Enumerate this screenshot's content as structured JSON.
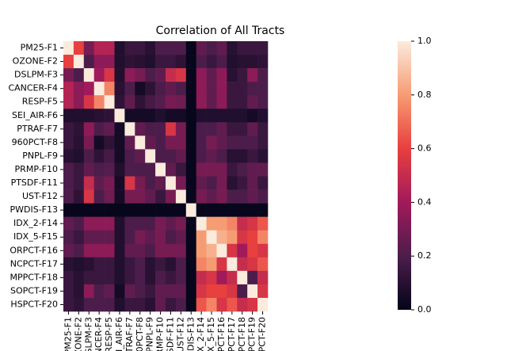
{
  "chart_data": {
    "type": "heatmap",
    "title": "Correlation of All Tracts",
    "categories": [
      "PM25-F1",
      "OZONE-F2",
      "DSLPM-F3",
      "CANCER-F4",
      "RESP-F5",
      "SEI_AIR-F6",
      "PTRAF-F7",
      "960PCT-F8",
      "PNPL-F9",
      "PRMP-F10",
      "PTSDF-F11",
      "UST-F12",
      "PWDIS-F13",
      "IDX_2-F14",
      "IDX_5-F15",
      "ORPCT-F16",
      "NCPCT-F17",
      "MPPCT-F18",
      "SOPCT-F19",
      "HSPCT-F20"
    ],
    "z": [
      [
        1,
        0.6,
        0.3,
        0.45,
        0.45,
        0.08,
        0.15,
        0.15,
        0.1,
        0.2,
        0.2,
        0.2,
        0.01,
        0.25,
        0.2,
        0.25,
        0.1,
        0.15,
        0.15,
        0.15
      ],
      [
        0.6,
        1,
        0.2,
        0.35,
        0.35,
        0.08,
        0.12,
        0.1,
        0.08,
        0.15,
        0.15,
        0.12,
        0.01,
        0.2,
        0.15,
        0.2,
        0.08,
        0.1,
        0.1,
        0.12
      ],
      [
        0.3,
        0.2,
        1,
        0.4,
        0.55,
        0.08,
        0.35,
        0.3,
        0.2,
        0.25,
        0.5,
        0.55,
        0.01,
        0.35,
        0.25,
        0.35,
        0.1,
        0.15,
        0.35,
        0.2
      ],
      [
        0.45,
        0.35,
        0.4,
        1,
        0.75,
        0.1,
        0.2,
        0.05,
        0.12,
        0.2,
        0.25,
        0.2,
        0.01,
        0.35,
        0.25,
        0.35,
        0.15,
        0.15,
        0.2,
        0.2
      ],
      [
        0.45,
        0.35,
        0.55,
        0.75,
        1,
        0.12,
        0.25,
        0.12,
        0.18,
        0.22,
        0.3,
        0.28,
        0.01,
        0.35,
        0.25,
        0.35,
        0.15,
        0.15,
        0.25,
        0.2
      ],
      [
        0.08,
        0.08,
        0.08,
        0.1,
        0.12,
        1,
        0.05,
        0.05,
        0.05,
        0.08,
        0.05,
        0.05,
        0.01,
        0.08,
        0.08,
        0.08,
        0.08,
        0.08,
        0.05,
        0.08
      ],
      [
        0.15,
        0.12,
        0.35,
        0.2,
        0.25,
        0.05,
        1,
        0.25,
        0.2,
        0.2,
        0.55,
        0.3,
        0.01,
        0.2,
        0.2,
        0.25,
        0.15,
        0.15,
        0.25,
        0.15
      ],
      [
        0.15,
        0.1,
        0.3,
        0.05,
        0.12,
        0.05,
        0.25,
        1,
        0.25,
        0.2,
        0.3,
        0.3,
        0.01,
        0.2,
        0.3,
        0.25,
        0.2,
        0.2,
        0.2,
        0.15
      ],
      [
        0.1,
        0.08,
        0.2,
        0.12,
        0.18,
        0.05,
        0.2,
        0.25,
        1,
        0.2,
        0.2,
        0.25,
        0.01,
        0.2,
        0.25,
        0.2,
        0.1,
        0.1,
        0.15,
        0.1
      ],
      [
        0.2,
        0.15,
        0.25,
        0.2,
        0.22,
        0.08,
        0.2,
        0.2,
        0.2,
        1,
        0.25,
        0.15,
        0.01,
        0.3,
        0.3,
        0.3,
        0.15,
        0.2,
        0.25,
        0.25
      ],
      [
        0.2,
        0.15,
        0.5,
        0.25,
        0.3,
        0.05,
        0.55,
        0.3,
        0.2,
        0.25,
        1,
        0.3,
        0.01,
        0.25,
        0.2,
        0.3,
        0.1,
        0.15,
        0.25,
        0.15
      ],
      [
        0.2,
        0.12,
        0.55,
        0.2,
        0.28,
        0.05,
        0.3,
        0.3,
        0.25,
        0.15,
        0.3,
        1,
        0.01,
        0.3,
        0.25,
        0.3,
        0.2,
        0.2,
        0.25,
        0.2
      ],
      [
        0.01,
        0.01,
        0.01,
        0.01,
        0.01,
        0.01,
        0.01,
        0.01,
        0.01,
        0.01,
        0.01,
        0.01,
        1,
        0.01,
        0.01,
        0.01,
        0.01,
        0.01,
        0.01,
        0.01
      ],
      [
        0.25,
        0.2,
        0.35,
        0.35,
        0.35,
        0.08,
        0.2,
        0.2,
        0.2,
        0.3,
        0.25,
        0.3,
        0.01,
        1,
        0.8,
        0.8,
        0.75,
        0.5,
        0.55,
        0.65
      ],
      [
        0.2,
        0.15,
        0.25,
        0.25,
        0.25,
        0.08,
        0.2,
        0.3,
        0.25,
        0.3,
        0.2,
        0.25,
        0.01,
        0.8,
        1,
        0.85,
        0.8,
        0.55,
        0.6,
        0.75
      ],
      [
        0.25,
        0.2,
        0.35,
        0.35,
        0.35,
        0.08,
        0.25,
        0.25,
        0.2,
        0.3,
        0.3,
        0.3,
        0.01,
        0.8,
        0.85,
        1,
        0.55,
        0.4,
        0.6,
        0.55
      ],
      [
        0.1,
        0.08,
        0.1,
        0.15,
        0.15,
        0.08,
        0.15,
        0.2,
        0.1,
        0.15,
        0.1,
        0.2,
        0.01,
        0.75,
        0.8,
        0.55,
        1,
        0.5,
        0.55,
        0.65
      ],
      [
        0.15,
        0.1,
        0.15,
        0.15,
        0.15,
        0.08,
        0.15,
        0.2,
        0.1,
        0.2,
        0.15,
        0.2,
        0.01,
        0.5,
        0.55,
        0.4,
        0.5,
        1,
        0.2,
        0.5
      ],
      [
        0.15,
        0.1,
        0.35,
        0.2,
        0.25,
        0.05,
        0.25,
        0.2,
        0.15,
        0.25,
        0.25,
        0.25,
        0.01,
        0.55,
        0.6,
        0.6,
        0.55,
        0.2,
        1,
        0.55
      ],
      [
        0.15,
        0.12,
        0.2,
        0.2,
        0.2,
        0.08,
        0.15,
        0.15,
        0.1,
        0.25,
        0.15,
        0.2,
        0.01,
        0.65,
        0.75,
        0.55,
        0.65,
        0.5,
        0.55,
        1
      ]
    ],
    "zlim": [
      0,
      1
    ],
    "zticks": [
      {
        "value": 0,
        "label": "0.0"
      },
      0.2,
      0.4,
      0.6,
      0.8,
      {
        "value": 1,
        "label": "1.0"
      }
    ]
  }
}
